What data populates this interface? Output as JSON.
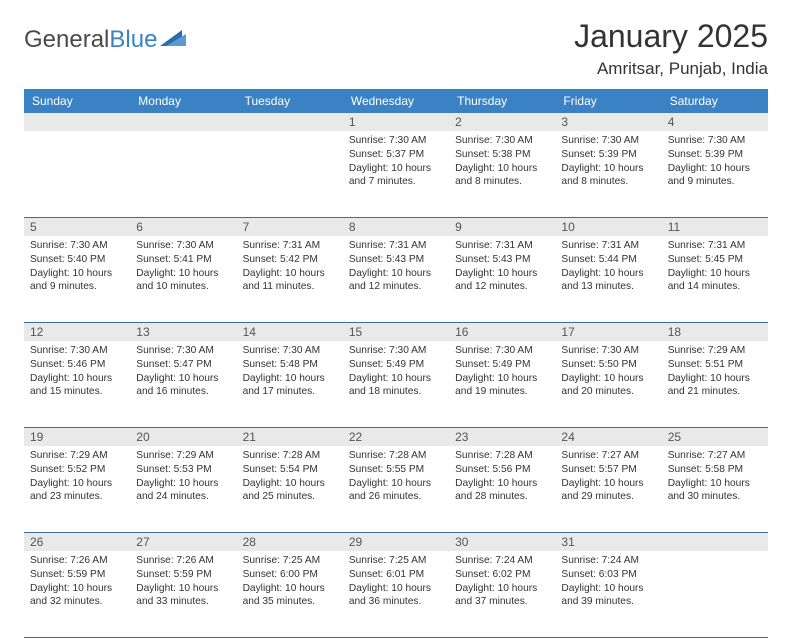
{
  "logo": {
    "general": "General",
    "blue": "Blue"
  },
  "header": {
    "title": "January 2025",
    "location": "Amritsar, Punjab, India"
  },
  "colors": {
    "accent": "#3b82c4",
    "gridline": "#3b6ea0",
    "daterow_bg": "#e9e9e9"
  },
  "dayNames": [
    "Sunday",
    "Monday",
    "Tuesday",
    "Wednesday",
    "Thursday",
    "Friday",
    "Saturday"
  ],
  "calendar": {
    "first_weekday_index": 3,
    "weeks": [
      [
        null,
        null,
        null,
        {
          "d": "1",
          "sr": "7:30 AM",
          "ss": "5:37 PM",
          "dl": "10 hours and 7 minutes."
        },
        {
          "d": "2",
          "sr": "7:30 AM",
          "ss": "5:38 PM",
          "dl": "10 hours and 8 minutes."
        },
        {
          "d": "3",
          "sr": "7:30 AM",
          "ss": "5:39 PM",
          "dl": "10 hours and 8 minutes."
        },
        {
          "d": "4",
          "sr": "7:30 AM",
          "ss": "5:39 PM",
          "dl": "10 hours and 9 minutes."
        }
      ],
      [
        {
          "d": "5",
          "sr": "7:30 AM",
          "ss": "5:40 PM",
          "dl": "10 hours and 9 minutes."
        },
        {
          "d": "6",
          "sr": "7:30 AM",
          "ss": "5:41 PM",
          "dl": "10 hours and 10 minutes."
        },
        {
          "d": "7",
          "sr": "7:31 AM",
          "ss": "5:42 PM",
          "dl": "10 hours and 11 minutes."
        },
        {
          "d": "8",
          "sr": "7:31 AM",
          "ss": "5:43 PM",
          "dl": "10 hours and 12 minutes."
        },
        {
          "d": "9",
          "sr": "7:31 AM",
          "ss": "5:43 PM",
          "dl": "10 hours and 12 minutes."
        },
        {
          "d": "10",
          "sr": "7:31 AM",
          "ss": "5:44 PM",
          "dl": "10 hours and 13 minutes."
        },
        {
          "d": "11",
          "sr": "7:31 AM",
          "ss": "5:45 PM",
          "dl": "10 hours and 14 minutes."
        }
      ],
      [
        {
          "d": "12",
          "sr": "7:30 AM",
          "ss": "5:46 PM",
          "dl": "10 hours and 15 minutes."
        },
        {
          "d": "13",
          "sr": "7:30 AM",
          "ss": "5:47 PM",
          "dl": "10 hours and 16 minutes."
        },
        {
          "d": "14",
          "sr": "7:30 AM",
          "ss": "5:48 PM",
          "dl": "10 hours and 17 minutes."
        },
        {
          "d": "15",
          "sr": "7:30 AM",
          "ss": "5:49 PM",
          "dl": "10 hours and 18 minutes."
        },
        {
          "d": "16",
          "sr": "7:30 AM",
          "ss": "5:49 PM",
          "dl": "10 hours and 19 minutes."
        },
        {
          "d": "17",
          "sr": "7:30 AM",
          "ss": "5:50 PM",
          "dl": "10 hours and 20 minutes."
        },
        {
          "d": "18",
          "sr": "7:29 AM",
          "ss": "5:51 PM",
          "dl": "10 hours and 21 minutes."
        }
      ],
      [
        {
          "d": "19",
          "sr": "7:29 AM",
          "ss": "5:52 PM",
          "dl": "10 hours and 23 minutes."
        },
        {
          "d": "20",
          "sr": "7:29 AM",
          "ss": "5:53 PM",
          "dl": "10 hours and 24 minutes."
        },
        {
          "d": "21",
          "sr": "7:28 AM",
          "ss": "5:54 PM",
          "dl": "10 hours and 25 minutes."
        },
        {
          "d": "22",
          "sr": "7:28 AM",
          "ss": "5:55 PM",
          "dl": "10 hours and 26 minutes."
        },
        {
          "d": "23",
          "sr": "7:28 AM",
          "ss": "5:56 PM",
          "dl": "10 hours and 28 minutes."
        },
        {
          "d": "24",
          "sr": "7:27 AM",
          "ss": "5:57 PM",
          "dl": "10 hours and 29 minutes."
        },
        {
          "d": "25",
          "sr": "7:27 AM",
          "ss": "5:58 PM",
          "dl": "10 hours and 30 minutes."
        }
      ],
      [
        {
          "d": "26",
          "sr": "7:26 AM",
          "ss": "5:59 PM",
          "dl": "10 hours and 32 minutes."
        },
        {
          "d": "27",
          "sr": "7:26 AM",
          "ss": "5:59 PM",
          "dl": "10 hours and 33 minutes."
        },
        {
          "d": "28",
          "sr": "7:25 AM",
          "ss": "6:00 PM",
          "dl": "10 hours and 35 minutes."
        },
        {
          "d": "29",
          "sr": "7:25 AM",
          "ss": "6:01 PM",
          "dl": "10 hours and 36 minutes."
        },
        {
          "d": "30",
          "sr": "7:24 AM",
          "ss": "6:02 PM",
          "dl": "10 hours and 37 minutes."
        },
        {
          "d": "31",
          "sr": "7:24 AM",
          "ss": "6:03 PM",
          "dl": "10 hours and 39 minutes."
        },
        null
      ]
    ]
  },
  "labels": {
    "sunrise": "Sunrise: ",
    "sunset": "Sunset: ",
    "daylight": "Daylight: "
  }
}
